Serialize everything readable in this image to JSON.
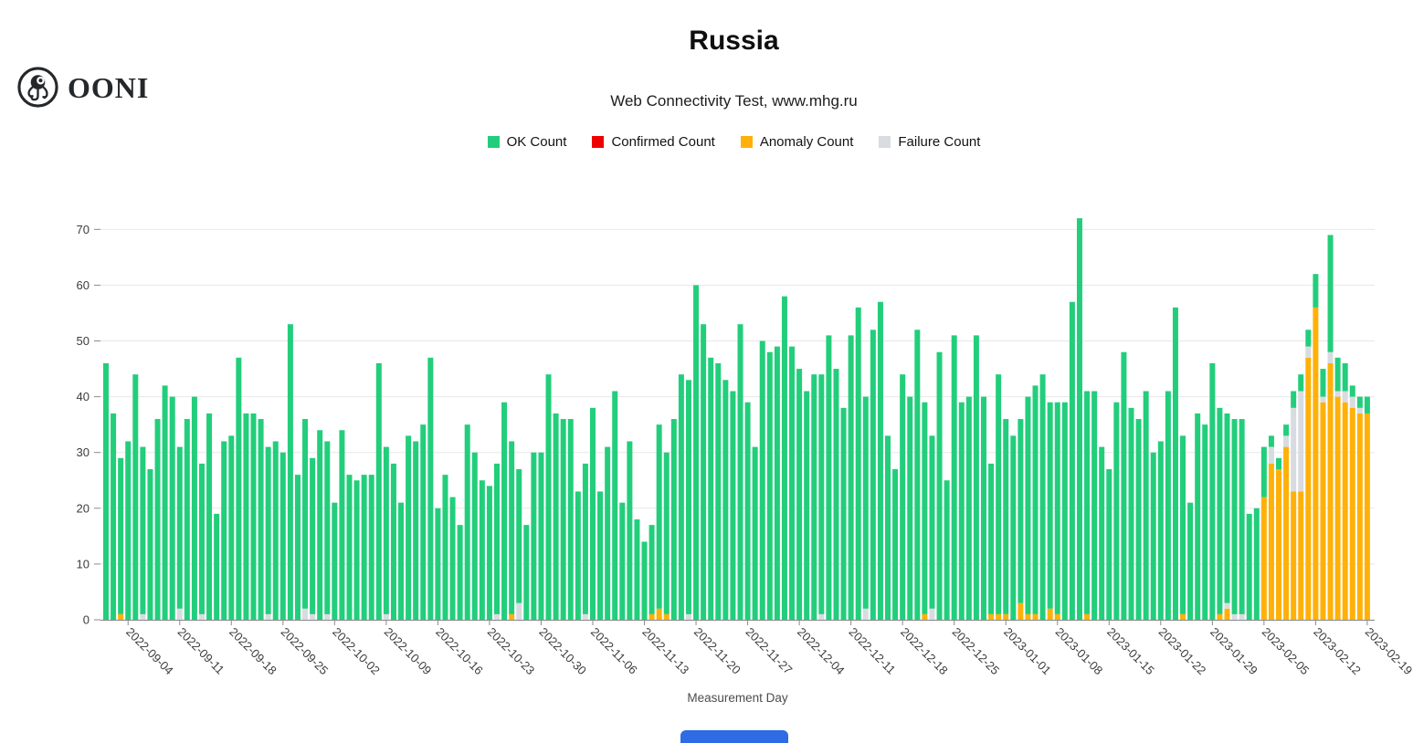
{
  "header": {
    "brand": "OONI",
    "title": "Russia",
    "subtitle": "Web Connectivity Test, www.mhg.ru"
  },
  "legend": [
    {
      "label": "OK Count",
      "color": "#22ce7b"
    },
    {
      "label": "Confirmed Count",
      "color": "#ee0000"
    },
    {
      "label": "Anomaly Count",
      "color": "#ffb109"
    },
    {
      "label": "Failure Count",
      "color": "#d8dbe0"
    }
  ],
  "colors": {
    "ok": "#22ce7b",
    "confirmed": "#ee0000",
    "anomaly": "#ffb109",
    "failure": "#d8dbe0",
    "gridline": "#e8e8e8",
    "axis": "#8a8a8a",
    "tick_text": "#3c3c3c",
    "bottom_button": "#2e6be4"
  },
  "chart_data": {
    "type": "bar",
    "stacked": true,
    "title": "Russia",
    "subtitle": "Web Connectivity Test, www.mhg.ru",
    "xlabel": "Measurement Day",
    "ylabel": "",
    "ylim": [
      0,
      73
    ],
    "grid": true,
    "legend_position": "top",
    "y_ticks": [
      0,
      10,
      20,
      30,
      40,
      50,
      60,
      70
    ],
    "start_date": "2022-09-01",
    "end_date": "2023-02-19",
    "x_tick_labels": [
      "2022-09-04",
      "2022-09-11",
      "2022-09-18",
      "2022-09-25",
      "2022-10-02",
      "2022-10-09",
      "2022-10-16",
      "2022-10-23",
      "2022-10-30",
      "2022-11-06",
      "2022-11-13",
      "2022-11-20",
      "2022-11-27",
      "2022-12-04",
      "2022-12-11",
      "2022-12-18",
      "2022-12-25",
      "2023-01-01",
      "2023-01-08",
      "2023-01-15",
      "2023-01-22",
      "2023-01-29",
      "2023-02-05",
      "2023-02-12",
      "2023-02-19"
    ],
    "x_tick_day_indices": [
      3,
      10,
      17,
      24,
      31,
      38,
      45,
      52,
      59,
      66,
      73,
      80,
      87,
      94,
      101,
      108,
      115,
      122,
      129,
      136,
      143,
      150,
      157,
      164,
      171
    ],
    "stack_order_bottom_to_top": [
      "Anomaly Count",
      "Confirmed Count",
      "Failure Count",
      "OK Count"
    ],
    "series": [
      {
        "name": "OK Count",
        "color": "#22ce7b",
        "values": [
          46,
          37,
          28,
          32,
          44,
          30,
          27,
          36,
          42,
          40,
          29,
          36,
          40,
          27,
          37,
          19,
          32,
          33,
          47,
          37,
          37,
          36,
          30,
          32,
          30,
          53,
          26,
          34,
          28,
          34,
          31,
          21,
          34,
          26,
          25,
          26,
          26,
          46,
          30,
          28,
          21,
          33,
          32,
          35,
          47,
          20,
          26,
          22,
          17,
          35,
          30,
          25,
          24,
          27,
          39,
          31,
          24,
          17,
          30,
          30,
          44,
          37,
          36,
          36,
          23,
          27,
          38,
          23,
          31,
          41,
          21,
          32,
          18,
          14,
          16,
          33,
          29,
          36,
          44,
          42,
          60,
          53,
          47,
          46,
          43,
          41,
          53,
          39,
          31,
          50,
          48,
          49,
          58,
          49,
          45,
          41,
          44,
          43,
          51,
          45,
          38,
          51,
          56,
          38,
          52,
          57,
          33,
          27,
          44,
          40,
          52,
          38,
          31,
          48,
          25,
          51,
          39,
          40,
          51,
          40,
          27,
          43,
          35,
          33,
          33,
          39,
          41,
          44,
          37,
          38,
          39,
          57,
          72,
          40,
          41,
          31,
          27,
          39,
          48,
          38,
          36,
          41,
          30,
          32,
          41,
          56,
          32,
          21,
          37,
          35,
          46,
          37,
          34,
          35,
          35,
          19,
          20,
          9,
          2,
          2,
          2,
          3,
          3,
          3,
          6,
          5,
          21,
          6,
          5,
          2,
          2,
          3
        ]
      },
      {
        "name": "Confirmed Count",
        "color": "#ee0000",
        "values": [
          0,
          0,
          0,
          0,
          0,
          0,
          0,
          0,
          0,
          0,
          0,
          0,
          0,
          0,
          0,
          0,
          0,
          0,
          0,
          0,
          0,
          0,
          0,
          0,
          0,
          0,
          0,
          0,
          0,
          0,
          0,
          0,
          0,
          0,
          0,
          0,
          0,
          0,
          0,
          0,
          0,
          0,
          0,
          0,
          0,
          0,
          0,
          0,
          0,
          0,
          0,
          0,
          0,
          0,
          0,
          0,
          0,
          0,
          0,
          0,
          0,
          0,
          0,
          0,
          0,
          0,
          0,
          0,
          0,
          0,
          0,
          0,
          0,
          0,
          0,
          0,
          0,
          0,
          0,
          0,
          0,
          0,
          0,
          0,
          0,
          0,
          0,
          0,
          0,
          0,
          0,
          0,
          0,
          0,
          0,
          0,
          0,
          0,
          0,
          0,
          0,
          0,
          0,
          0,
          0,
          0,
          0,
          0,
          0,
          0,
          0,
          0,
          0,
          0,
          0,
          0,
          0,
          0,
          0,
          0,
          0,
          0,
          0,
          0,
          0,
          0,
          0,
          0,
          0,
          0,
          0,
          0,
          0,
          0,
          0,
          0,
          0,
          0,
          0,
          0,
          0,
          0,
          0,
          0,
          0,
          0,
          0,
          0,
          0,
          0,
          0,
          0,
          0,
          0,
          0,
          0,
          0,
          0,
          0,
          0,
          0,
          0,
          0,
          0,
          0,
          0,
          0,
          0,
          0,
          0,
          0,
          0
        ]
      },
      {
        "name": "Anomaly Count",
        "color": "#ffb109",
        "values": [
          0,
          0,
          1,
          0,
          0,
          0,
          0,
          0,
          0,
          0,
          0,
          0,
          0,
          0,
          0,
          0,
          0,
          0,
          0,
          0,
          0,
          0,
          0,
          0,
          0,
          0,
          0,
          0,
          0,
          0,
          0,
          0,
          0,
          0,
          0,
          0,
          0,
          0,
          0,
          0,
          0,
          0,
          0,
          0,
          0,
          0,
          0,
          0,
          0,
          0,
          0,
          0,
          0,
          0,
          0,
          1,
          0,
          0,
          0,
          0,
          0,
          0,
          0,
          0,
          0,
          0,
          0,
          0,
          0,
          0,
          0,
          0,
          0,
          0,
          1,
          2,
          1,
          0,
          0,
          0,
          0,
          0,
          0,
          0,
          0,
          0,
          0,
          0,
          0,
          0,
          0,
          0,
          0,
          0,
          0,
          0,
          0,
          0,
          0,
          0,
          0,
          0,
          0,
          0,
          0,
          0,
          0,
          0,
          0,
          0,
          0,
          1,
          0,
          0,
          0,
          0,
          0,
          0,
          0,
          0,
          1,
          1,
          1,
          0,
          3,
          1,
          1,
          0,
          2,
          1,
          0,
          0,
          0,
          1,
          0,
          0,
          0,
          0,
          0,
          0,
          0,
          0,
          0,
          0,
          0,
          0,
          1,
          0,
          0,
          0,
          0,
          1,
          2,
          0,
          0,
          0,
          0,
          22,
          28,
          27,
          31,
          23,
          23,
          47,
          56,
          39,
          46,
          40,
          39,
          38,
          37,
          37
        ]
      },
      {
        "name": "Failure Count",
        "color": "#d8dbe0",
        "values": [
          0,
          0,
          0,
          0,
          0,
          1,
          0,
          0,
          0,
          0,
          2,
          0,
          0,
          1,
          0,
          0,
          0,
          0,
          0,
          0,
          0,
          0,
          1,
          0,
          0,
          0,
          0,
          2,
          1,
          0,
          1,
          0,
          0,
          0,
          0,
          0,
          0,
          0,
          1,
          0,
          0,
          0,
          0,
          0,
          0,
          0,
          0,
          0,
          0,
          0,
          0,
          0,
          0,
          1,
          0,
          0,
          3,
          0,
          0,
          0,
          0,
          0,
          0,
          0,
          0,
          1,
          0,
          0,
          0,
          0,
          0,
          0,
          0,
          0,
          0,
          0,
          0,
          0,
          0,
          1,
          0,
          0,
          0,
          0,
          0,
          0,
          0,
          0,
          0,
          0,
          0,
          0,
          0,
          0,
          0,
          0,
          0,
          1,
          0,
          0,
          0,
          0,
          0,
          2,
          0,
          0,
          0,
          0,
          0,
          0,
          0,
          0,
          2,
          0,
          0,
          0,
          0,
          0,
          0,
          0,
          0,
          0,
          0,
          0,
          0,
          0,
          0,
          0,
          0,
          0,
          0,
          0,
          0,
          0,
          0,
          0,
          0,
          0,
          0,
          0,
          0,
          0,
          0,
          0,
          0,
          0,
          0,
          0,
          0,
          0,
          0,
          0,
          1,
          1,
          1,
          0,
          0,
          0,
          3,
          0,
          2,
          15,
          18,
          2,
          0,
          1,
          2,
          1,
          2,
          2,
          1,
          0
        ]
      }
    ]
  },
  "footer": {
    "x_axis_title": "Measurement Day"
  }
}
